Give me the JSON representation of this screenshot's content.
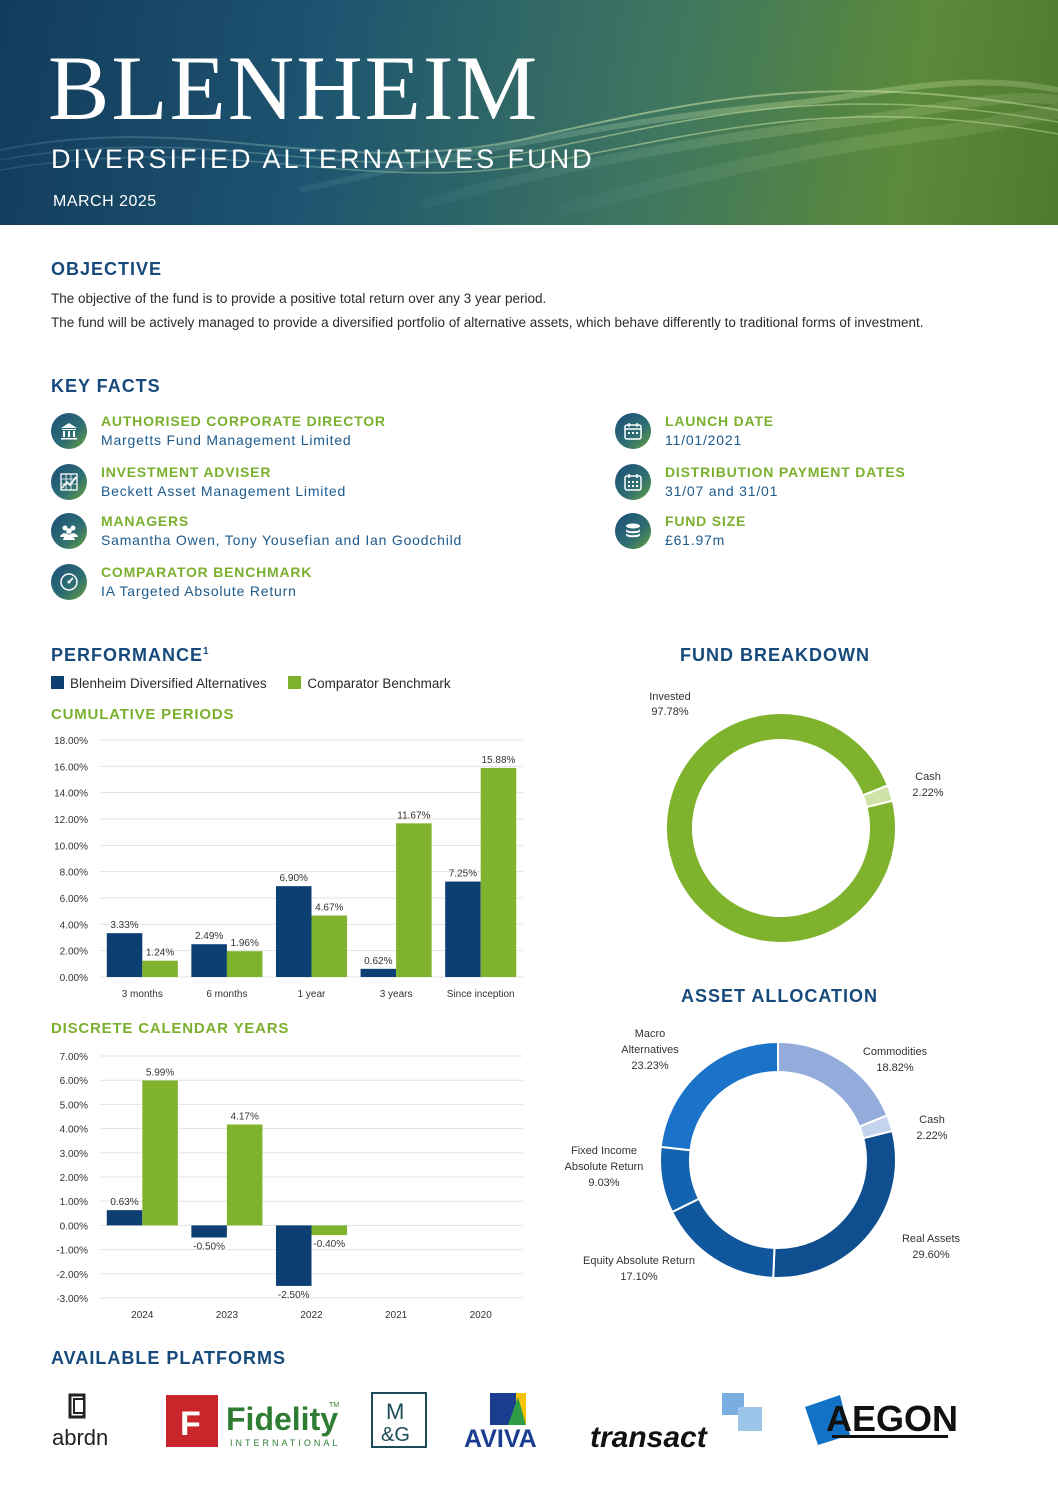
{
  "header": {
    "title": "BLENHEIM",
    "subtitle": "DIVERSIFIED ALTERNATIVES FUND",
    "date": "MARCH 2025"
  },
  "objective": {
    "heading": "OBJECTIVE",
    "line1": "The objective of the fund is to provide a positive total return over any 3 year period.",
    "line2": "The fund will be actively managed to provide a diversified portfolio of alternative assets, which behave differently to traditional forms of investment."
  },
  "key_facts": {
    "heading": "KEY FACTS",
    "items": [
      {
        "label": "AUTHORISED CORPORATE DIRECTOR",
        "value": "Margetts Fund Management Limited",
        "icon": "bank-icon"
      },
      {
        "label": "INVESTMENT ADVISER",
        "value": "Beckett Asset Management Limited",
        "icon": "chart-grid-icon"
      },
      {
        "label": "MANAGERS",
        "value": "Samantha Owen, Tony Yousefian and Ian Goodchild",
        "icon": "people-icon"
      },
      {
        "label": "COMPARATOR BENCHMARK",
        "value": "IA Targeted Absolute Return",
        "icon": "gauge-icon"
      },
      {
        "label": "LAUNCH DATE",
        "value": "11/01/2021",
        "icon": "calendar-icon"
      },
      {
        "label": "DISTRIBUTION PAYMENT DATES",
        "value": "31/07 and 31/01",
        "icon": "calendar-grid-icon"
      },
      {
        "label": "FUND SIZE",
        "value": "£61.97m",
        "icon": "coins-icon"
      }
    ]
  },
  "performance": {
    "heading": "PERFORMANCE",
    "footnote_mark": "1",
    "legend": [
      "Blenheim Diversified Alternatives",
      "Comparator Benchmark"
    ],
    "cumulative_heading": "CUMULATIVE PERIODS",
    "discrete_heading": "DISCRETE CALENDAR YEARS"
  },
  "fund_breakdown": {
    "heading": "FUND BREAKDOWN",
    "labels": [
      "Invested",
      "Cash"
    ],
    "value_labels": [
      "97.78%",
      "2.22%"
    ]
  },
  "asset_allocation": {
    "heading": "ASSET ALLOCATION",
    "labels": [
      "Macro",
      "Alternatives",
      "Commodities",
      "Cash",
      "Fixed Income",
      "Absolute Return",
      "Real Assets",
      "Equity Absolute Return"
    ],
    "value_labels": [
      "23.23%",
      "18.82%",
      "2.22%",
      "9.03%",
      "29.60%",
      "17.10%"
    ]
  },
  "platforms": {
    "heading": "AVAILABLE PLATFORMS",
    "logos": [
      "abrdn",
      "Fidelity",
      "INTERNATIONAL",
      "M",
      "&G",
      "AVIVA",
      "transact",
      "AEGON"
    ],
    "logo_marks": [
      "TM"
    ]
  },
  "colors": {
    "fund": "#0e3f73",
    "benchmark": "#80b32d",
    "heading": "#174a7c",
    "subheading": "#7ab02e"
  },
  "chart_data": [
    {
      "type": "bar",
      "title": "CUMULATIVE PERIODS",
      "categories": [
        "3 months",
        "6 months",
        "1 year",
        "3 years",
        "Since inception"
      ],
      "series": [
        {
          "name": "Blenheim Diversified Alternatives",
          "values": [
            3.33,
            2.49,
            6.9,
            0.62,
            7.25
          ],
          "labels": [
            "3.33%",
            "2.49%",
            "6.90%",
            "0.62%",
            "7.25%"
          ]
        },
        {
          "name": "Comparator Benchmark",
          "values": [
            1.24,
            1.96,
            4.67,
            11.67,
            15.88
          ],
          "labels": [
            "1.24%",
            "1.96%",
            "4.67%",
            "11.67%",
            "15.88%"
          ]
        }
      ],
      "ylim": [
        0,
        18
      ],
      "yticks": [
        "0.00%",
        "2.00%",
        "4.00%",
        "6.00%",
        "8.00%",
        "10.00%",
        "12.00%",
        "14.00%",
        "16.00%",
        "18.00%"
      ],
      "grid": true
    },
    {
      "type": "bar",
      "title": "DISCRETE CALENDAR YEARS",
      "categories": [
        "2024",
        "2023",
        "2022",
        "2021",
        "2020"
      ],
      "series": [
        {
          "name": "Blenheim Diversified Alternatives",
          "values": [
            0.63,
            -0.5,
            -2.5,
            null,
            null
          ],
          "labels": [
            "0.63%",
            "-0.50%",
            "-2.50%",
            "",
            ""
          ]
        },
        {
          "name": "Comparator Benchmark",
          "values": [
            5.99,
            4.17,
            -0.4,
            null,
            null
          ],
          "labels": [
            "5.99%",
            "4.17%",
            "-0.40%",
            "",
            ""
          ]
        }
      ],
      "ylim": [
        -3,
        7
      ],
      "yticks": [
        "-3.00%",
        "-2.00%",
        "-1.00%",
        "0.00%",
        "1.00%",
        "2.00%",
        "3.00%",
        "4.00%",
        "5.00%",
        "6.00%",
        "7.00%"
      ],
      "grid": true
    },
    {
      "type": "pie",
      "title": "FUND BREAKDOWN",
      "categories": [
        "Invested",
        "Cash"
      ],
      "values": [
        97.78,
        2.22
      ],
      "colors": [
        "#80b32d",
        "#cfe3a8"
      ]
    },
    {
      "type": "pie",
      "title": "ASSET ALLOCATION",
      "categories": [
        "Commodities",
        "Cash",
        "Real Assets",
        "Equity Absolute Return",
        "Fixed Income Absolute Return",
        "Macro Alternatives"
      ],
      "values": [
        18.82,
        2.22,
        29.6,
        17.1,
        9.03,
        23.23
      ],
      "colors": [
        "#93acdb",
        "#c4d3ee",
        "#0f4f8f",
        "#11579e",
        "#1463b0",
        "#1a72c9"
      ]
    }
  ]
}
